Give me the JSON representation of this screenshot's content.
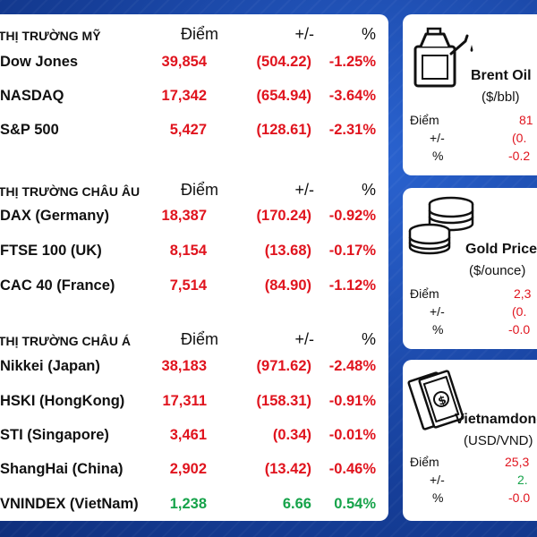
{
  "markets": {
    "sections": [
      {
        "title": "THỊ TRƯỜNG MỸ",
        "col_point": "Điểm",
        "col_change": "+/-",
        "col_pct": "%",
        "rows": [
          {
            "name": "Dow Jones",
            "point": "39,854",
            "change": "(504.22)",
            "pct": "-1.25%",
            "status": "down"
          },
          {
            "name": "NASDAQ",
            "point": "17,342",
            "change": "(654.94)",
            "pct": "-3.64%",
            "status": "down"
          },
          {
            "name": "S&P 500",
            "point": "5,427",
            "change": "(128.61)",
            "pct": "-2.31%",
            "status": "down"
          }
        ]
      },
      {
        "title": "THỊ TRƯỜNG CHÂU ÂU",
        "col_point": "Điểm",
        "col_change": "+/-",
        "col_pct": "%",
        "rows": [
          {
            "name": "DAX (Germany)",
            "point": "18,387",
            "change": "(170.24)",
            "pct": "-0.92%",
            "status": "down"
          },
          {
            "name": "FTSE 100 (UK)",
            "point": "8,154",
            "change": "(13.68)",
            "pct": "-0.17%",
            "status": "down"
          },
          {
            "name": "CAC 40 (France)",
            "point": "7,514",
            "change": "(84.90)",
            "pct": "-1.12%",
            "status": "down"
          }
        ]
      },
      {
        "title": "THỊ TRƯỜNG CHÂU Á",
        "col_point": "Điểm",
        "col_change": "+/-",
        "col_pct": "%",
        "rows": [
          {
            "name": "Nikkei (Japan)",
            "point": "38,183",
            "change": "(971.62)",
            "pct": "-2.48%",
            "status": "down"
          },
          {
            "name": "HSKI (HongKong)",
            "point": "17,311",
            "change": "(158.31)",
            "pct": "-0.91%",
            "status": "down"
          },
          {
            "name": "STI (Singapore)",
            "point": "3,461",
            "change": "(0.34)",
            "pct": "-0.01%",
            "status": "down"
          },
          {
            "name": "ShangHai (China)",
            "point": "2,902",
            "change": "(13.42)",
            "pct": "-0.46%",
            "status": "down"
          },
          {
            "name": "VNINDEX (VietNam)",
            "point": "1,238",
            "change": "6.66",
            "pct": "0.54%",
            "status": "up"
          }
        ]
      }
    ]
  },
  "commodities": [
    {
      "title": "Brent Oil",
      "unit": "($/bbl)",
      "icon": "fuel-can-icon",
      "label_point": "Điểm",
      "label_change": "+/-",
      "label_pct": "%",
      "point": "81",
      "change": "(0.",
      "pct": "-0.2",
      "status": "down"
    },
    {
      "title": "Gold Price",
      "unit": "($/ounce)",
      "icon": "gold-coins-icon",
      "label_point": "Điểm",
      "label_change": "+/-",
      "label_pct": "%",
      "point": "2,3",
      "change": "(0.",
      "pct": "-0.0",
      "status": "down"
    },
    {
      "title": "Vietnamdong",
      "unit": "(USD/VND)",
      "icon": "banknotes-icon",
      "label_point": "Điểm",
      "label_change": "+/-",
      "label_pct": "%",
      "point": "25,3",
      "change": "2.",
      "pct": "-0.0",
      "status": "mixed"
    }
  ],
  "colors": {
    "down": "#e0141e",
    "up": "#16a34a",
    "background": "#1646a8"
  }
}
